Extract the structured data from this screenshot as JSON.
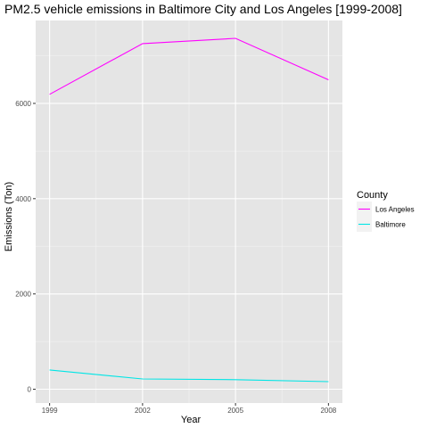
{
  "chart_data": {
    "type": "line",
    "title": "PM2.5 vehicle emissions in Baltimore City and Los Angeles [1999-2008]",
    "xlabel": "Year",
    "ylabel": "Emissions (Ton)",
    "x": [
      1999,
      2002,
      2005,
      2008
    ],
    "x_ticks": [
      "1999",
      "2002",
      "2005",
      "2008"
    ],
    "y_ticks": [
      0,
      2000,
      4000,
      6000
    ],
    "y_tick_labels": [
      "0",
      "2000",
      "4000",
      "6000"
    ],
    "xlim": [
      1998.55,
      2008.45
    ],
    "ylim": [
      -290,
      7740
    ],
    "grid": true,
    "legend": {
      "title": "County",
      "placement": "right"
    },
    "series": [
      {
        "name": "Los Angeles",
        "color": "#ff00ff",
        "values": [
          6190,
          7255,
          7365,
          6495
        ]
      },
      {
        "name": "Baltimore",
        "color": "#00e5e5",
        "values": [
          405,
          215,
          200,
          160
        ]
      }
    ]
  }
}
